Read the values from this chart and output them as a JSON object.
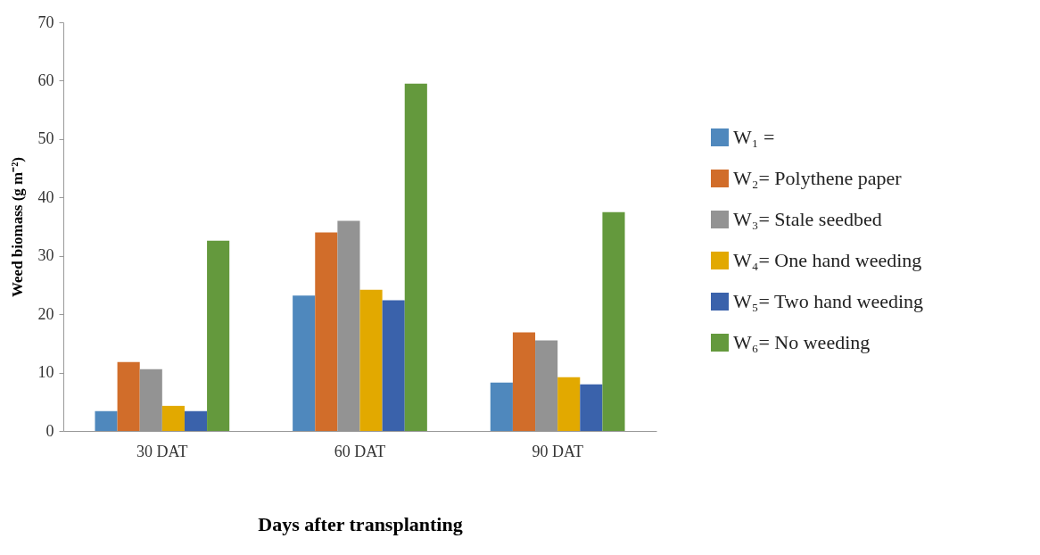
{
  "chart_data": {
    "type": "bar",
    "xlabel": "Days after transplanting",
    "ylabel": "Weed biomass (g m⁻²)",
    "categories": [
      "30 DAT",
      "60 DAT",
      "90 DAT"
    ],
    "series": [
      {
        "name": "W₁ =",
        "color": "#4f88bd",
        "values": [
          3.4,
          23.2,
          8.3
        ]
      },
      {
        "name": "W₂= Polythene paper",
        "color": "#d16d2a",
        "values": [
          11.8,
          34,
          16.9
        ]
      },
      {
        "name": "W₃= Stale seedbed",
        "color": "#939393",
        "values": [
          10.6,
          36,
          15.5
        ]
      },
      {
        "name": "W₄= One hand weeding",
        "color": "#e2a900",
        "values": [
          4.3,
          24.2,
          9.2
        ]
      },
      {
        "name": "W₅= Two hand weeding",
        "color": "#3a62ab",
        "values": [
          3.4,
          22.4,
          8
        ]
      },
      {
        "name": "W₆= No weeding",
        "color": "#64993d",
        "values": [
          32.6,
          59.5,
          37.5
        ]
      }
    ],
    "ylim": [
      0,
      70
    ],
    "yticks": [
      0,
      10,
      20,
      30,
      40,
      50,
      60,
      70
    ],
    "grid": false,
    "legend": "right"
  }
}
